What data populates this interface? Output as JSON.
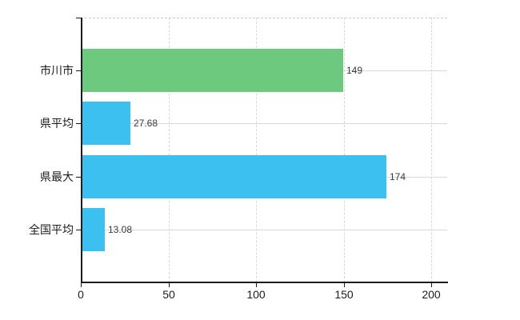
{
  "chart_data": {
    "type": "bar",
    "orientation": "horizontal",
    "title": "",
    "xlabel": "",
    "ylabel": "",
    "categories": [
      "市川市",
      "県平均",
      "県最大",
      "全国平均"
    ],
    "values": [
      149,
      27.68,
      174,
      13.08
    ],
    "value_labels": [
      "149",
      "27.68",
      "174",
      "13.08"
    ],
    "bar_colors": [
      "#6cc97e",
      "#3bc0f0",
      "#3bc0f0",
      "#3bc0f0"
    ],
    "x_tick_labels": [
      "0",
      "50",
      "100",
      "150",
      "200"
    ],
    "x_tick_values": [
      0,
      50,
      100,
      150,
      200
    ],
    "xlim": [
      0,
      209
    ],
    "grid": true,
    "legend": false,
    "colors": {
      "axis": "#1c1c1c",
      "gridline": "#d8d8d8",
      "value_label": "#3a3a3a",
      "tick_label": "#1c1c1c",
      "background": "#ffffff"
    }
  }
}
